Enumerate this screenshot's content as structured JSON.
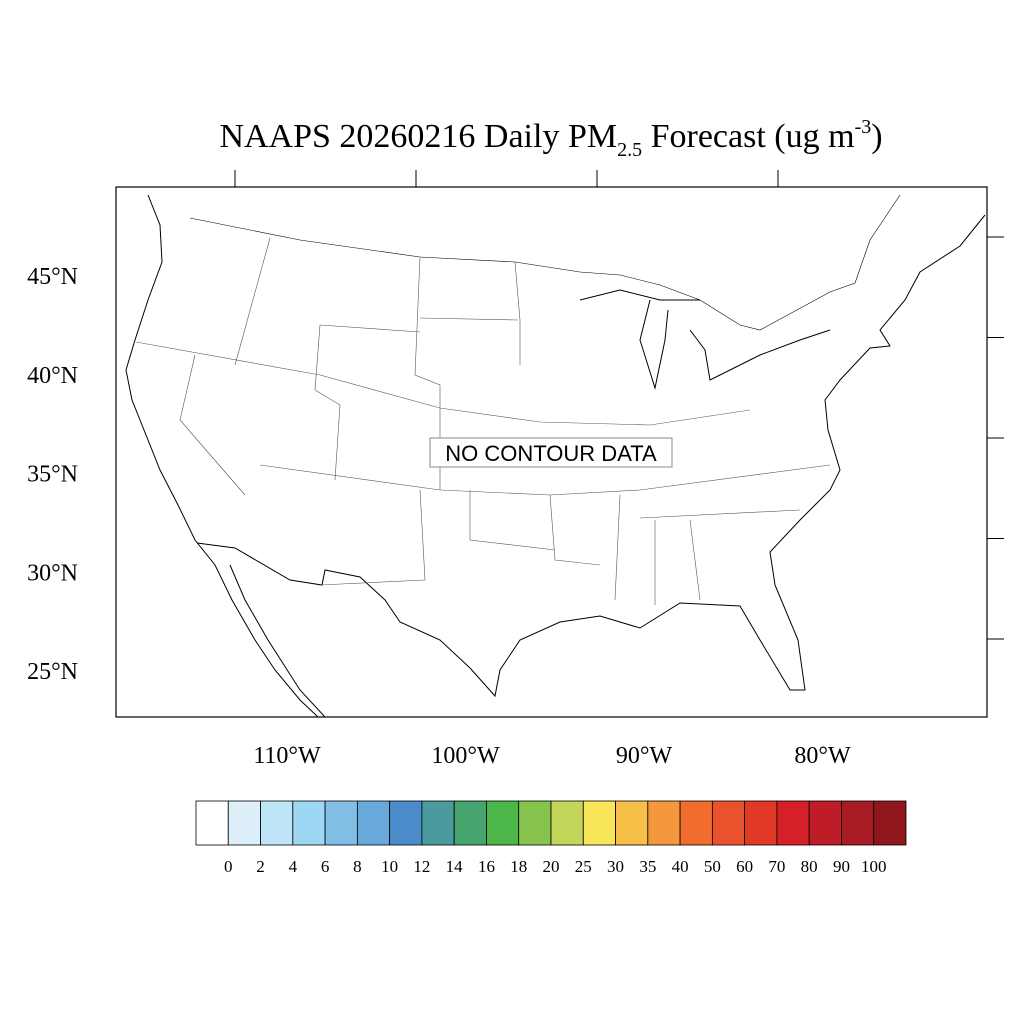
{
  "title": {
    "main": "NAAPS 20260216 Daily PM",
    "subscript": "2.5",
    "middle": " Forecast (ug m",
    "superscript": "-3",
    "end": ")"
  },
  "notice": "NO CONTOUR DATA",
  "lat_ticks": [
    {
      "value": 45,
      "label": "45°N"
    },
    {
      "value": 40,
      "label": "40°N"
    },
    {
      "value": 35,
      "label": "35°N"
    },
    {
      "value": 30,
      "label": "30°N"
    },
    {
      "value": 25,
      "label": "25°N"
    }
  ],
  "lon_ticks": [
    {
      "value": -110,
      "label": "110°W"
    },
    {
      "value": -100,
      "label": "100°W"
    },
    {
      "value": -90,
      "label": "90°W"
    },
    {
      "value": -80,
      "label": "80°W"
    }
  ],
  "colorbar": {
    "levels": [
      0,
      2,
      4,
      6,
      8,
      10,
      12,
      14,
      16,
      18,
      20,
      25,
      30,
      35,
      40,
      50,
      60,
      70,
      80,
      90,
      100
    ],
    "colors": [
      "#ffffff",
      "#ddf0fa",
      "#bde4f7",
      "#9dd7f4",
      "#82bde6",
      "#68a8db",
      "#4a8bc9",
      "#4a9a9e",
      "#48a46e",
      "#4cb648",
      "#86c44e",
      "#c3d65a",
      "#f8e658",
      "#f7bf48",
      "#f5983d",
      "#f26c2f",
      "#e9522c",
      "#e03a27",
      "#d52029",
      "#be1c26",
      "#a81b22",
      "#8f171b"
    ]
  }
}
